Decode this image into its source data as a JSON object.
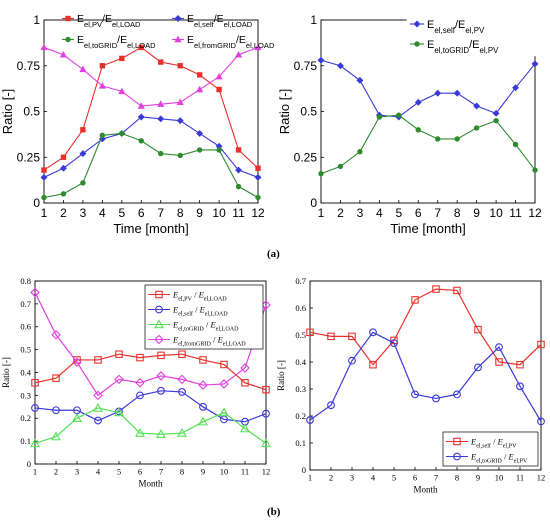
{
  "captions": {
    "a": "(a)",
    "b": "(b)"
  },
  "chart_data": [
    {
      "id": "a-left",
      "type": "line",
      "xlabel": "Time [month]",
      "ylabel": "Ratio [-]",
      "xlim": [
        1,
        12
      ],
      "ylim": [
        0,
        1
      ],
      "xticks": [
        "1",
        "2",
        "3",
        "4",
        "5",
        "6",
        "7",
        "8",
        "9",
        "10",
        "11",
        "12"
      ],
      "yticks": [
        "0",
        "0.25",
        "0.5",
        "0.75",
        "1"
      ],
      "grid": false,
      "legend_placement": "top",
      "x": [
        1,
        2,
        3,
        4,
        5,
        6,
        7,
        8,
        9,
        10,
        11,
        12
      ],
      "series": [
        {
          "name": "E<sub>el,PV</sub>/E<sub>el,LOAD</sub>",
          "color": "#e8312a",
          "marker": "square",
          "values": [
            0.18,
            0.25,
            0.4,
            0.75,
            0.79,
            0.85,
            0.77,
            0.75,
            0.7,
            0.62,
            0.29,
            0.19
          ]
        },
        {
          "name": "E<sub>el,self</sub>/E<sub>el,LOAD</sub>",
          "color": "#3a3ad8",
          "marker": "diamond",
          "values": [
            0.14,
            0.19,
            0.27,
            0.35,
            0.38,
            0.47,
            0.46,
            0.45,
            0.38,
            0.31,
            0.18,
            0.14
          ]
        },
        {
          "name": "E<sub>el,toGRID</sub>/E<sub>el,LOAD</sub>",
          "color": "#2e8b2e",
          "marker": "circle",
          "values": [
            0.03,
            0.05,
            0.11,
            0.37,
            0.38,
            0.34,
            0.27,
            0.26,
            0.29,
            0.29,
            0.09,
            0.03
          ]
        },
        {
          "name": "E<sub>el,fromGRID</sub>/E<sub>el,LOAD</sub>",
          "color": "#e040e0",
          "marker": "triangle",
          "values": [
            0.85,
            0.81,
            0.73,
            0.64,
            0.61,
            0.53,
            0.54,
            0.55,
            0.62,
            0.69,
            0.81,
            0.85
          ]
        }
      ]
    },
    {
      "id": "a-right",
      "type": "line",
      "xlabel": "Time [month]",
      "ylabel": "Ratio [-]",
      "xlim": [
        1,
        12
      ],
      "ylim": [
        0,
        1
      ],
      "xticks": [
        "1",
        "2",
        "3",
        "4",
        "5",
        "6",
        "7",
        "8",
        "9",
        "10",
        "11",
        "12"
      ],
      "yticks": [
        "0",
        "0.25",
        "0.5",
        "0.75",
        "1"
      ],
      "grid": false,
      "legend_placement": "top-right",
      "x": [
        1,
        2,
        3,
        4,
        5,
        6,
        7,
        8,
        9,
        10,
        11,
        12
      ],
      "series": [
        {
          "name": "E<sub>el,self</sub>/E<sub>el,PV</sub>",
          "color": "#3a3ad8",
          "marker": "diamond",
          "values": [
            0.78,
            0.75,
            0.67,
            0.48,
            0.47,
            0.55,
            0.6,
            0.6,
            0.53,
            0.49,
            0.63,
            0.76
          ]
        },
        {
          "name": "E<sub>el,toGRID</sub>/E<sub>el,PV</sub>",
          "color": "#2e8b2e",
          "marker": "circle",
          "values": [
            0.16,
            0.2,
            0.28,
            0.47,
            0.48,
            0.4,
            0.35,
            0.35,
            0.41,
            0.45,
            0.32,
            0.18
          ]
        }
      ]
    },
    {
      "id": "b-left",
      "type": "line",
      "xlabel": "Month",
      "ylabel": "Ratio [-]",
      "xlim": [
        1,
        12
      ],
      "ylim": [
        0,
        0.8
      ],
      "xticks": [
        "1",
        "2",
        "3",
        "4",
        "5",
        "6",
        "7",
        "8",
        "9",
        "10",
        "11",
        "12"
      ],
      "yticks": [
        "0",
        "0.1",
        "0.2",
        "0.3",
        "0.4",
        "0.5",
        "0.6",
        "0.7",
        "0.8"
      ],
      "grid": false,
      "legend_placement": "top-right",
      "x": [
        1,
        2,
        3,
        4,
        5,
        6,
        7,
        8,
        9,
        10,
        11,
        12
      ],
      "series": [
        {
          "name": "<i>E</i><sub>el,PV</sub> / <i>E</i><sub>el,LOAD</sub>",
          "color": "#e8312a",
          "marker": "square",
          "values": [
            0.355,
            0.375,
            0.455,
            0.455,
            0.48,
            0.465,
            0.475,
            0.48,
            0.455,
            0.435,
            0.355,
            0.325
          ]
        },
        {
          "name": "<i>E</i><sub>el,self</sub> / <i>E</i><sub>el,LOAD</sub>",
          "color": "#3a3ad8",
          "marker": "circle",
          "values": [
            0.245,
            0.235,
            0.235,
            0.19,
            0.23,
            0.3,
            0.32,
            0.315,
            0.25,
            0.195,
            0.185,
            0.22
          ]
        },
        {
          "name": "<i>E</i><sub>el,toGRID</sub> / <i>E</i><sub>el,LOAD</sub>",
          "color": "#55e055",
          "marker": "triangle",
          "values": [
            0.09,
            0.12,
            0.2,
            0.245,
            0.225,
            0.135,
            0.13,
            0.135,
            0.185,
            0.225,
            0.155,
            0.09
          ]
        },
        {
          "name": "<i>E</i><sub>el,fromGRID</sub> / <i>E</i><sub>el,LOAD</sub>",
          "color": "#e040e0",
          "marker": "diamond",
          "values": [
            0.75,
            0.565,
            0.445,
            0.3,
            0.37,
            0.355,
            0.385,
            0.37,
            0.345,
            0.35,
            0.42,
            0.695
          ]
        }
      ]
    },
    {
      "id": "b-right",
      "type": "line",
      "xlabel": "Month",
      "ylabel": "Ratio [-]",
      "xlim": [
        1,
        12
      ],
      "ylim": [
        0,
        0.7
      ],
      "xticks": [
        "1",
        "2",
        "3",
        "4",
        "5",
        "6",
        "7",
        "8",
        "9",
        "10",
        "11",
        "12"
      ],
      "yticks": [
        "0",
        "0.1",
        "0.2",
        "0.3",
        "0.4",
        "0.5",
        "0.6",
        "0.7"
      ],
      "grid": false,
      "legend_placement": "bottom-right",
      "x": [
        1,
        2,
        3,
        4,
        5,
        6,
        7,
        8,
        9,
        10,
        11,
        12
      ],
      "series": [
        {
          "name": "<i>E</i><sub>el,self</sub> / <i>E</i><sub>el,PV</sub>",
          "color": "#e8312a",
          "marker": "square",
          "values": [
            0.51,
            0.495,
            0.495,
            0.39,
            0.48,
            0.63,
            0.67,
            0.665,
            0.52,
            0.4,
            0.39,
            0.465
          ]
        },
        {
          "name": "<i>E</i><sub>el,toGRID</sub> / <i>E</i><sub>el,PV</sub>",
          "color": "#3a3ad8",
          "marker": "circle",
          "values": [
            0.185,
            0.24,
            0.405,
            0.51,
            0.47,
            0.28,
            0.265,
            0.28,
            0.38,
            0.455,
            0.31,
            0.18
          ]
        }
      ]
    }
  ]
}
